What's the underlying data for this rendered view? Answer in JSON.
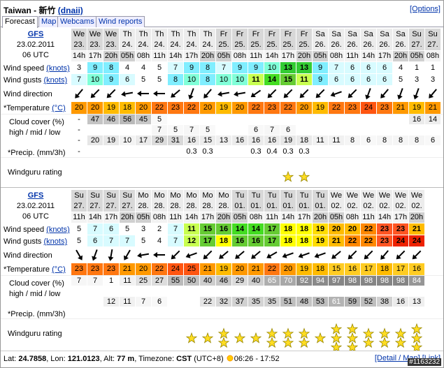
{
  "header": {
    "title": "Taiwan - 新竹",
    "user": "(dnaii)",
    "options": "[Options]"
  },
  "tabs": [
    "Forecast",
    "Map",
    "Webcams",
    "Wind reports"
  ],
  "row_labels": {
    "speed": "Wind speed",
    "gusts": "Wind gusts",
    "unit_knots": "(knots)",
    "direction": "Wind direction",
    "temperature": "*Temperature",
    "unit_temp": "(°C)",
    "cloud": "Cloud cover (%)",
    "cloud_levels": "high / mid / low",
    "precip": "*Precip. (mm/3h)",
    "rating": "Windguru rating"
  },
  "forecasts": [
    {
      "model": "GFS",
      "date": "23.02.2011",
      "run": "06 UTC",
      "days": [
        "We",
        "We",
        "We",
        "Th",
        "Th",
        "Th",
        "Th",
        "Th",
        "Th",
        "Fr",
        "Fr",
        "Fr",
        "Fr",
        "Fr",
        "Fr",
        "Sa",
        "Sa",
        "Sa",
        "Sa",
        "Sa",
        "Sa",
        "Su",
        "Su"
      ],
      "dates": [
        "23.",
        "23.",
        "23.",
        "24.",
        "24.",
        "24.",
        "24.",
        "24.",
        "24.",
        "25.",
        "25.",
        "25.",
        "25.",
        "25.",
        "25.",
        "26.",
        "26.",
        "26.",
        "26.",
        "26.",
        "26.",
        "27.",
        "27."
      ],
      "hours": [
        "14h",
        "17h",
        "20h",
        "05h",
        "08h",
        "11h",
        "14h",
        "17h",
        "20h",
        "05h",
        "08h",
        "11h",
        "14h",
        "17h",
        "20h",
        "05h",
        "08h",
        "11h",
        "14h",
        "17h",
        "20h",
        "05h",
        "08h"
      ],
      "wind_speed": [
        3,
        9,
        8,
        4,
        4,
        5,
        7,
        9,
        8,
        7,
        9,
        9,
        10,
        13,
        13,
        9,
        7,
        6,
        6,
        6,
        4,
        1,
        1
      ],
      "wind_gusts": [
        7,
        10,
        9,
        6,
        5,
        5,
        8,
        10,
        8,
        10,
        10,
        11,
        14,
        15,
        11,
        9,
        6,
        6,
        6,
        6,
        5,
        3,
        3
      ],
      "wind_dir": [
        40,
        45,
        45,
        80,
        90,
        90,
        50,
        20,
        40,
        80,
        80,
        55,
        45,
        45,
        45,
        45,
        70,
        45,
        20,
        40,
        20,
        20,
        40
      ],
      "temperature": [
        20,
        20,
        19,
        18,
        20,
        22,
        23,
        22,
        20,
        19,
        20,
        22,
        23,
        22,
        20,
        19,
        22,
        23,
        24,
        23,
        21,
        19,
        21
      ],
      "cloud_high": [
        "-",
        47,
        46,
        56,
        45,
        5,
        null,
        null,
        null,
        null,
        null,
        null,
        null,
        null,
        null,
        null,
        null,
        null,
        null,
        null,
        null,
        16,
        14
      ],
      "cloud_mid": [
        "-",
        null,
        null,
        null,
        null,
        7,
        5,
        7,
        5,
        null,
        null,
        6,
        7,
        6,
        null,
        null,
        null,
        null,
        null,
        null,
        null,
        null,
        null
      ],
      "cloud_low": [
        "-",
        20,
        19,
        10,
        17,
        29,
        31,
        16,
        15,
        13,
        16,
        16,
        16,
        19,
        18,
        11,
        11,
        8,
        6,
        8,
        8,
        8,
        6
      ],
      "precip": [
        "-",
        null,
        null,
        null,
        null,
        null,
        null,
        0.3,
        0.3,
        null,
        null,
        0.3,
        0.4,
        0.3,
        0.3,
        null,
        null,
        null,
        null,
        null,
        null,
        null,
        null
      ],
      "rating": [
        null,
        null,
        null,
        null,
        null,
        null,
        null,
        null,
        null,
        null,
        null,
        null,
        null,
        1,
        1,
        null,
        null,
        null,
        null,
        null,
        null,
        null,
        null
      ]
    },
    {
      "model": "GFS",
      "date": "23.02.2011",
      "run": "06 UTC",
      "days": [
        "Su",
        "Su",
        "Su",
        "Su",
        "Mo",
        "Mo",
        "Mo",
        "Mo",
        "Mo",
        "Mo",
        "Tu",
        "Tu",
        "Tu",
        "Tu",
        "Tu",
        "Tu",
        "We",
        "We",
        "We",
        "We",
        "We",
        "We"
      ],
      "dates": [
        "27.",
        "27.",
        "27.",
        "27.",
        "28.",
        "28.",
        "28.",
        "28.",
        "28.",
        "28.",
        "01.",
        "01.",
        "01.",
        "01.",
        "01.",
        "01.",
        "02.",
        "02.",
        "02.",
        "02.",
        "02.",
        "02."
      ],
      "hours": [
        "11h",
        "14h",
        "17h",
        "20h",
        "05h",
        "08h",
        "11h",
        "14h",
        "17h",
        "20h",
        "05h",
        "08h",
        "11h",
        "14h",
        "17h",
        "20h",
        "05h",
        "08h",
        "11h",
        "14h",
        "17h",
        "20h"
      ],
      "wind_speed": [
        5,
        7,
        6,
        5,
        3,
        2,
        7,
        11,
        15,
        16,
        14,
        14,
        17,
        18,
        18,
        19,
        20,
        20,
        22,
        23,
        23,
        21
      ],
      "wind_gusts": [
        5,
        6,
        7,
        7,
        5,
        4,
        7,
        12,
        17,
        18,
        16,
        16,
        17,
        18,
        18,
        19,
        21,
        22,
        22,
        23,
        24,
        24
      ],
      "wind_dir": [
        330,
        20,
        10,
        30,
        80,
        90,
        45,
        70,
        45,
        50,
        50,
        50,
        60,
        70,
        70,
        70,
        50,
        45,
        45,
        40,
        45,
        45
      ],
      "temperature": [
        23,
        23,
        23,
        21,
        20,
        22,
        24,
        25,
        21,
        19,
        20,
        21,
        22,
        20,
        19,
        18,
        15,
        16,
        17,
        18,
        17,
        16
      ],
      "cloud_high": [
        7,
        7,
        1,
        11,
        25,
        27,
        55,
        50,
        40,
        46,
        29,
        40,
        65,
        70,
        92,
        94,
        97,
        98,
        98,
        98,
        98,
        84
      ],
      "cloud_mid": [
        null,
        null,
        null,
        null,
        null,
        null,
        null,
        null,
        null,
        null,
        null,
        null,
        null,
        null,
        null,
        null,
        null,
        null,
        null,
        null,
        null,
        null
      ],
      "cloud_low": [
        null,
        null,
        12,
        11,
        7,
        6,
        null,
        null,
        22,
        32,
        37,
        35,
        35,
        51,
        48,
        53,
        61,
        59,
        52,
        38,
        16,
        13
      ],
      "precip": [
        null,
        null,
        null,
        null,
        null,
        null,
        null,
        null,
        null,
        null,
        null,
        null,
        null,
        null,
        null,
        null,
        null,
        null,
        null,
        null,
        null,
        null
      ],
      "rating": [
        null,
        null,
        null,
        null,
        null,
        null,
        null,
        1,
        1,
        2,
        1,
        1,
        2,
        2,
        2,
        1,
        3,
        3,
        2,
        2,
        2,
        3
      ]
    }
  ],
  "footer": {
    "lat_label": "Lat:",
    "lat": "24.7858",
    "lon_label": ", Lon:",
    "lon": "121.0123",
    "alt_label": ", Alt:",
    "alt": "77 m",
    "tz_label": ", Timezone:",
    "tz": "CST",
    "utc": "(UTC+8)",
    "sun": "06:26 - 17:52",
    "links": "[Detail / Map] [Link]",
    "watermark": "#1163232"
  }
}
